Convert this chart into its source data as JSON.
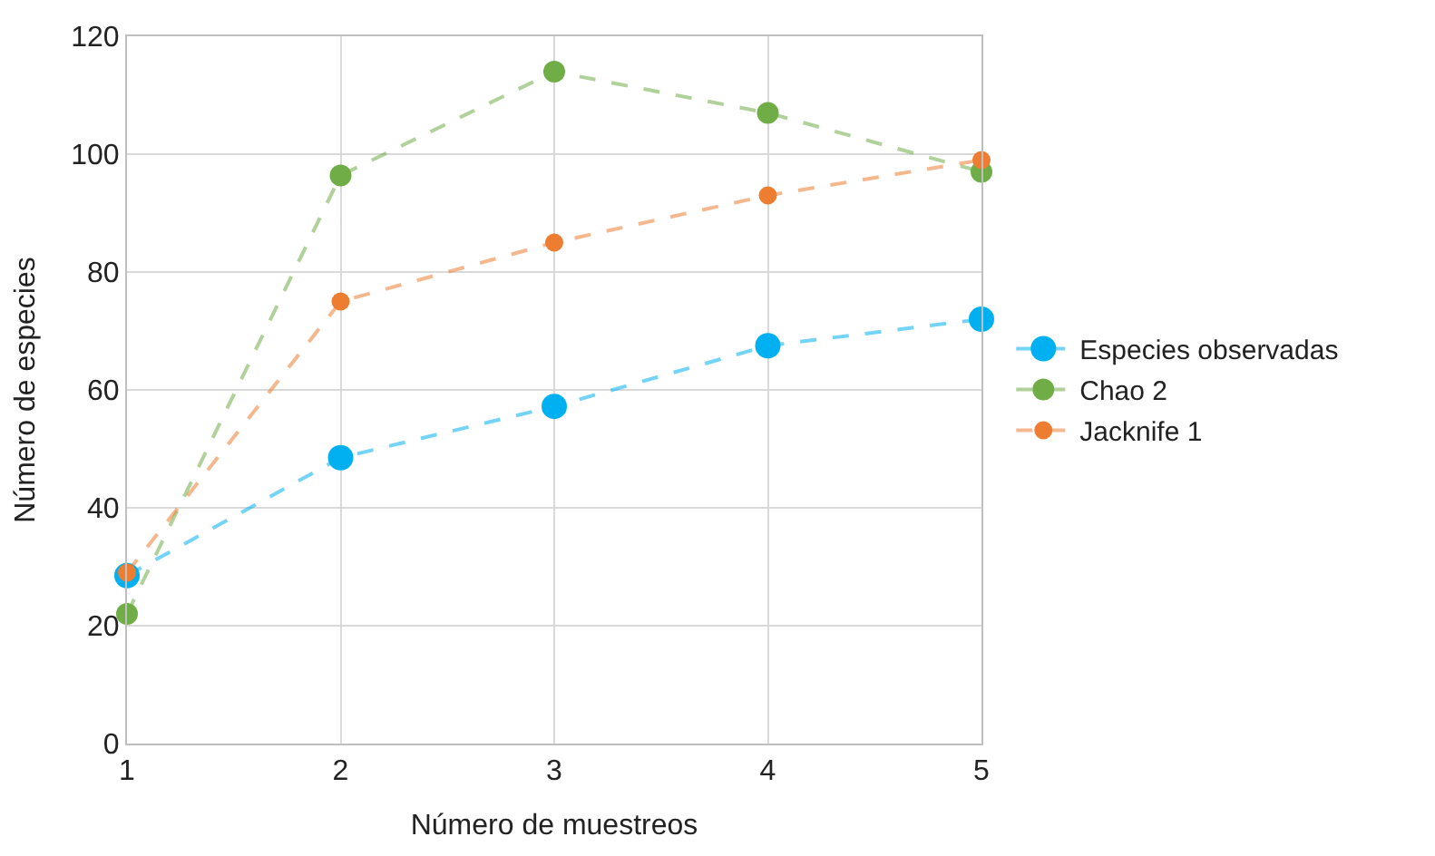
{
  "chart_data": {
    "type": "line",
    "xlabel": "Número de muestreos",
    "ylabel": "Número de especies",
    "x": [
      1,
      2,
      3,
      4,
      5
    ],
    "series": [
      {
        "name": "Especies observadas",
        "color": "#00b0f0",
        "values": [
          28.5,
          48.5,
          57.2,
          67.5,
          72
        ]
      },
      {
        "name": "Chao 2",
        "color": "#70ad47",
        "values": [
          22,
          96.4,
          114,
          107,
          97
        ]
      },
      {
        "name": "Jacknife 1",
        "color": "#ed7d31",
        "values": [
          29,
          75,
          85,
          93,
          99
        ]
      }
    ],
    "xlim": [
      1,
      5
    ],
    "xticks": [
      1,
      2,
      3,
      4,
      5
    ],
    "ylim": [
      0,
      120
    ],
    "yticks": [
      0,
      20,
      40,
      60,
      80,
      100,
      120
    ],
    "grid": true,
    "legend": "right",
    "marker": "circle",
    "line_style": "dashed"
  }
}
